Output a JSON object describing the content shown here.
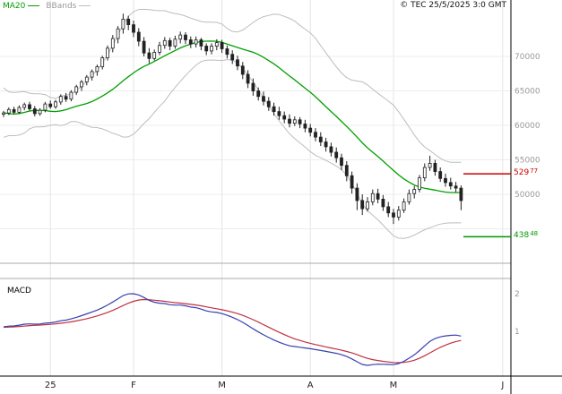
{
  "legend": {
    "ma20": "MA20",
    "bbands": "BBands"
  },
  "copyright": "© TEC 25/5/2025 3:0 GMT",
  "macd_panel": {
    "title": "MACD",
    "right_ticks": [
      "2",
      "1"
    ]
  },
  "chart_data": {
    "type": "candlestick_with_macd",
    "title": "",
    "x_axis": {
      "ticks": [
        {
          "index": 9,
          "label": "25"
        },
        {
          "index": 25,
          "label": "F"
        },
        {
          "index": 42,
          "label": "M"
        },
        {
          "index": 59,
          "label": "A"
        },
        {
          "index": 75,
          "label": "M"
        },
        {
          "index": 96,
          "label": "J"
        }
      ]
    },
    "y_axis": {
      "range": [
        400,
        782
      ],
      "ticks": [
        {
          "value": 700,
          "label": "70000"
        },
        {
          "value": 650,
          "label": "65000"
        },
        {
          "value": 600,
          "label": "60000"
        },
        {
          "value": 550,
          "label": "55000"
        },
        {
          "value": 500,
          "label": "50000"
        }
      ],
      "extra_gridlines": [
        450
      ]
    },
    "levels": [
      {
        "value": 529.77,
        "label_main": "529",
        "label_dec": "77",
        "color": "#cc0000"
      },
      {
        "value": 438.48,
        "label_main": "438",
        "label_dec": "48",
        "color": "#009900"
      }
    ],
    "overlays": {
      "ma20": {
        "period": 20,
        "color": "#00a000"
      },
      "bollinger": {
        "period": 20,
        "stddev": 2,
        "color": "#bdbdbd"
      }
    },
    "macd": {
      "fast": 12,
      "slow": 26,
      "signal_period": 9,
      "macd_color": "#3640b0",
      "signal_color": "#c03040"
    },
    "prehistory_closes": [
      640,
      655,
      630,
      610,
      595,
      585,
      600,
      620,
      638,
      648,
      640,
      622,
      605,
      595,
      608,
      622,
      632,
      620,
      610,
      616
    ],
    "candles": [
      [
        616,
        621,
        612,
        618
      ],
      [
        618,
        626,
        615,
        623
      ],
      [
        623,
        627,
        616,
        619
      ],
      [
        619,
        629,
        617,
        626
      ],
      [
        626,
        633,
        622,
        630
      ],
      [
        630,
        634,
        621,
        624
      ],
      [
        624,
        628,
        613,
        617
      ],
      [
        617,
        625,
        614,
        622
      ],
      [
        622,
        634,
        619,
        631
      ],
      [
        631,
        636,
        624,
        627
      ],
      [
        627,
        637,
        624,
        634
      ],
      [
        634,
        645,
        630,
        642
      ],
      [
        642,
        647,
        634,
        638
      ],
      [
        638,
        651,
        635,
        648
      ],
      [
        648,
        659,
        644,
        656
      ],
      [
        656,
        666,
        650,
        663
      ],
      [
        663,
        673,
        658,
        670
      ],
      [
        670,
        681,
        665,
        678
      ],
      [
        678,
        688,
        672,
        685
      ],
      [
        685,
        701,
        681,
        698
      ],
      [
        698,
        716,
        694,
        712
      ],
      [
        712,
        731,
        706,
        726
      ],
      [
        726,
        744,
        719,
        740
      ],
      [
        740,
        762,
        733,
        754
      ],
      [
        754,
        759,
        738,
        746
      ],
      [
        746,
        752,
        728,
        735
      ],
      [
        735,
        741,
        715,
        722
      ],
      [
        722,
        728,
        700,
        705
      ],
      [
        705,
        712,
        690,
        697
      ],
      [
        697,
        710,
        694,
        706
      ],
      [
        706,
        721,
        702,
        716
      ],
      [
        716,
        728,
        711,
        723
      ],
      [
        723,
        727,
        709,
        715
      ],
      [
        715,
        730,
        711,
        725
      ],
      [
        725,
        736,
        719,
        731
      ],
      [
        731,
        735,
        718,
        724
      ],
      [
        724,
        729,
        712,
        718
      ],
      [
        718,
        729,
        713,
        724
      ],
      [
        724,
        727,
        709,
        715
      ],
      [
        715,
        719,
        702,
        708
      ],
      [
        708,
        719,
        703,
        715
      ],
      [
        715,
        725,
        709,
        720
      ],
      [
        720,
        724,
        705,
        711
      ],
      [
        711,
        716,
        697,
        703
      ],
      [
        703,
        709,
        689,
        695
      ],
      [
        695,
        701,
        680,
        686
      ],
      [
        686,
        692,
        667,
        674
      ],
      [
        674,
        680,
        654,
        661
      ],
      [
        661,
        668,
        643,
        650
      ],
      [
        650,
        655,
        636,
        642
      ],
      [
        642,
        649,
        629,
        635
      ],
      [
        635,
        641,
        621,
        627
      ],
      [
        627,
        633,
        614,
        620
      ],
      [
        620,
        627,
        608,
        614
      ],
      [
        614,
        620,
        603,
        609
      ],
      [
        609,
        616,
        597,
        603
      ],
      [
        603,
        613,
        599,
        608
      ],
      [
        608,
        612,
        596,
        602
      ],
      [
        602,
        608,
        590,
        596
      ],
      [
        596,
        602,
        584,
        590
      ],
      [
        590,
        596,
        577,
        583
      ],
      [
        583,
        590,
        570,
        576
      ],
      [
        576,
        582,
        562,
        569
      ],
      [
        569,
        575,
        555,
        561
      ],
      [
        561,
        568,
        546,
        553
      ],
      [
        553,
        559,
        535,
        542
      ],
      [
        542,
        548,
        519,
        527
      ],
      [
        527,
        533,
        501,
        509
      ],
      [
        509,
        516,
        477,
        491
      ],
      [
        491,
        500,
        470,
        479
      ],
      [
        479,
        496,
        475,
        489
      ],
      [
        489,
        507,
        484,
        501
      ],
      [
        501,
        508,
        487,
        493
      ],
      [
        493,
        499,
        476,
        482
      ],
      [
        482,
        489,
        467,
        473
      ],
      [
        473,
        479,
        457,
        467
      ],
      [
        467,
        483,
        462,
        477
      ],
      [
        477,
        494,
        473,
        489
      ],
      [
        489,
        507,
        485,
        501
      ],
      [
        501,
        512,
        494,
        507
      ],
      [
        507,
        528,
        503,
        524
      ],
      [
        524,
        545,
        519,
        539
      ],
      [
        539,
        556,
        534,
        545
      ],
      [
        545,
        550,
        527,
        533
      ],
      [
        533,
        539,
        518,
        523
      ],
      [
        523,
        530,
        511,
        517
      ],
      [
        517,
        524,
        507,
        512
      ],
      [
        512,
        518,
        503,
        509
      ],
      [
        509,
        513,
        477,
        491
      ]
    ]
  }
}
